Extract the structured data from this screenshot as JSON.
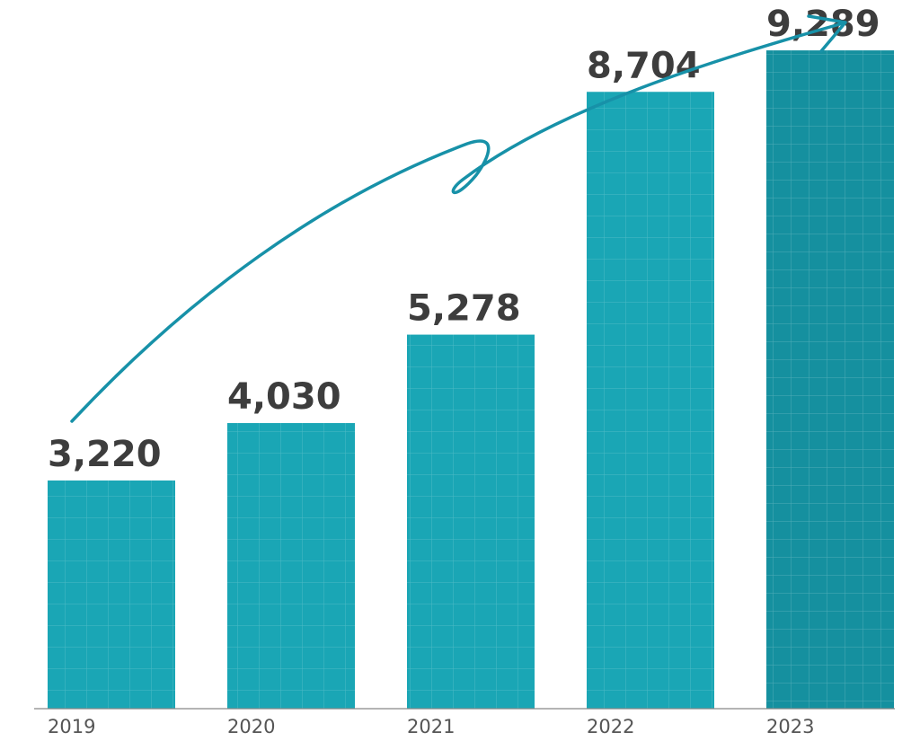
{
  "chart_data": {
    "type": "bar",
    "categories": [
      "2019",
      "2020",
      "2021",
      "2022",
      "2023"
    ],
    "values": [
      3220,
      4030,
      5278,
      8704,
      9289
    ],
    "data_labels": [
      "3,220",
      "4,030",
      "5,278",
      "8,704",
      "9,289"
    ],
    "title": "",
    "xlabel": "",
    "ylabel": "",
    "ylim": [
      0,
      10000
    ],
    "grid": false,
    "legend": "none",
    "colors": {
      "bar": "#1aa6b5",
      "bar_highlight": "#15909f",
      "bar_pattern": "#5fcad6",
      "arrow": "#1791a8",
      "label": "#3d3d3d",
      "axis": "#888888"
    },
    "annotations": [
      {
        "type": "trend-arrow",
        "direction": "up-right"
      }
    ]
  }
}
